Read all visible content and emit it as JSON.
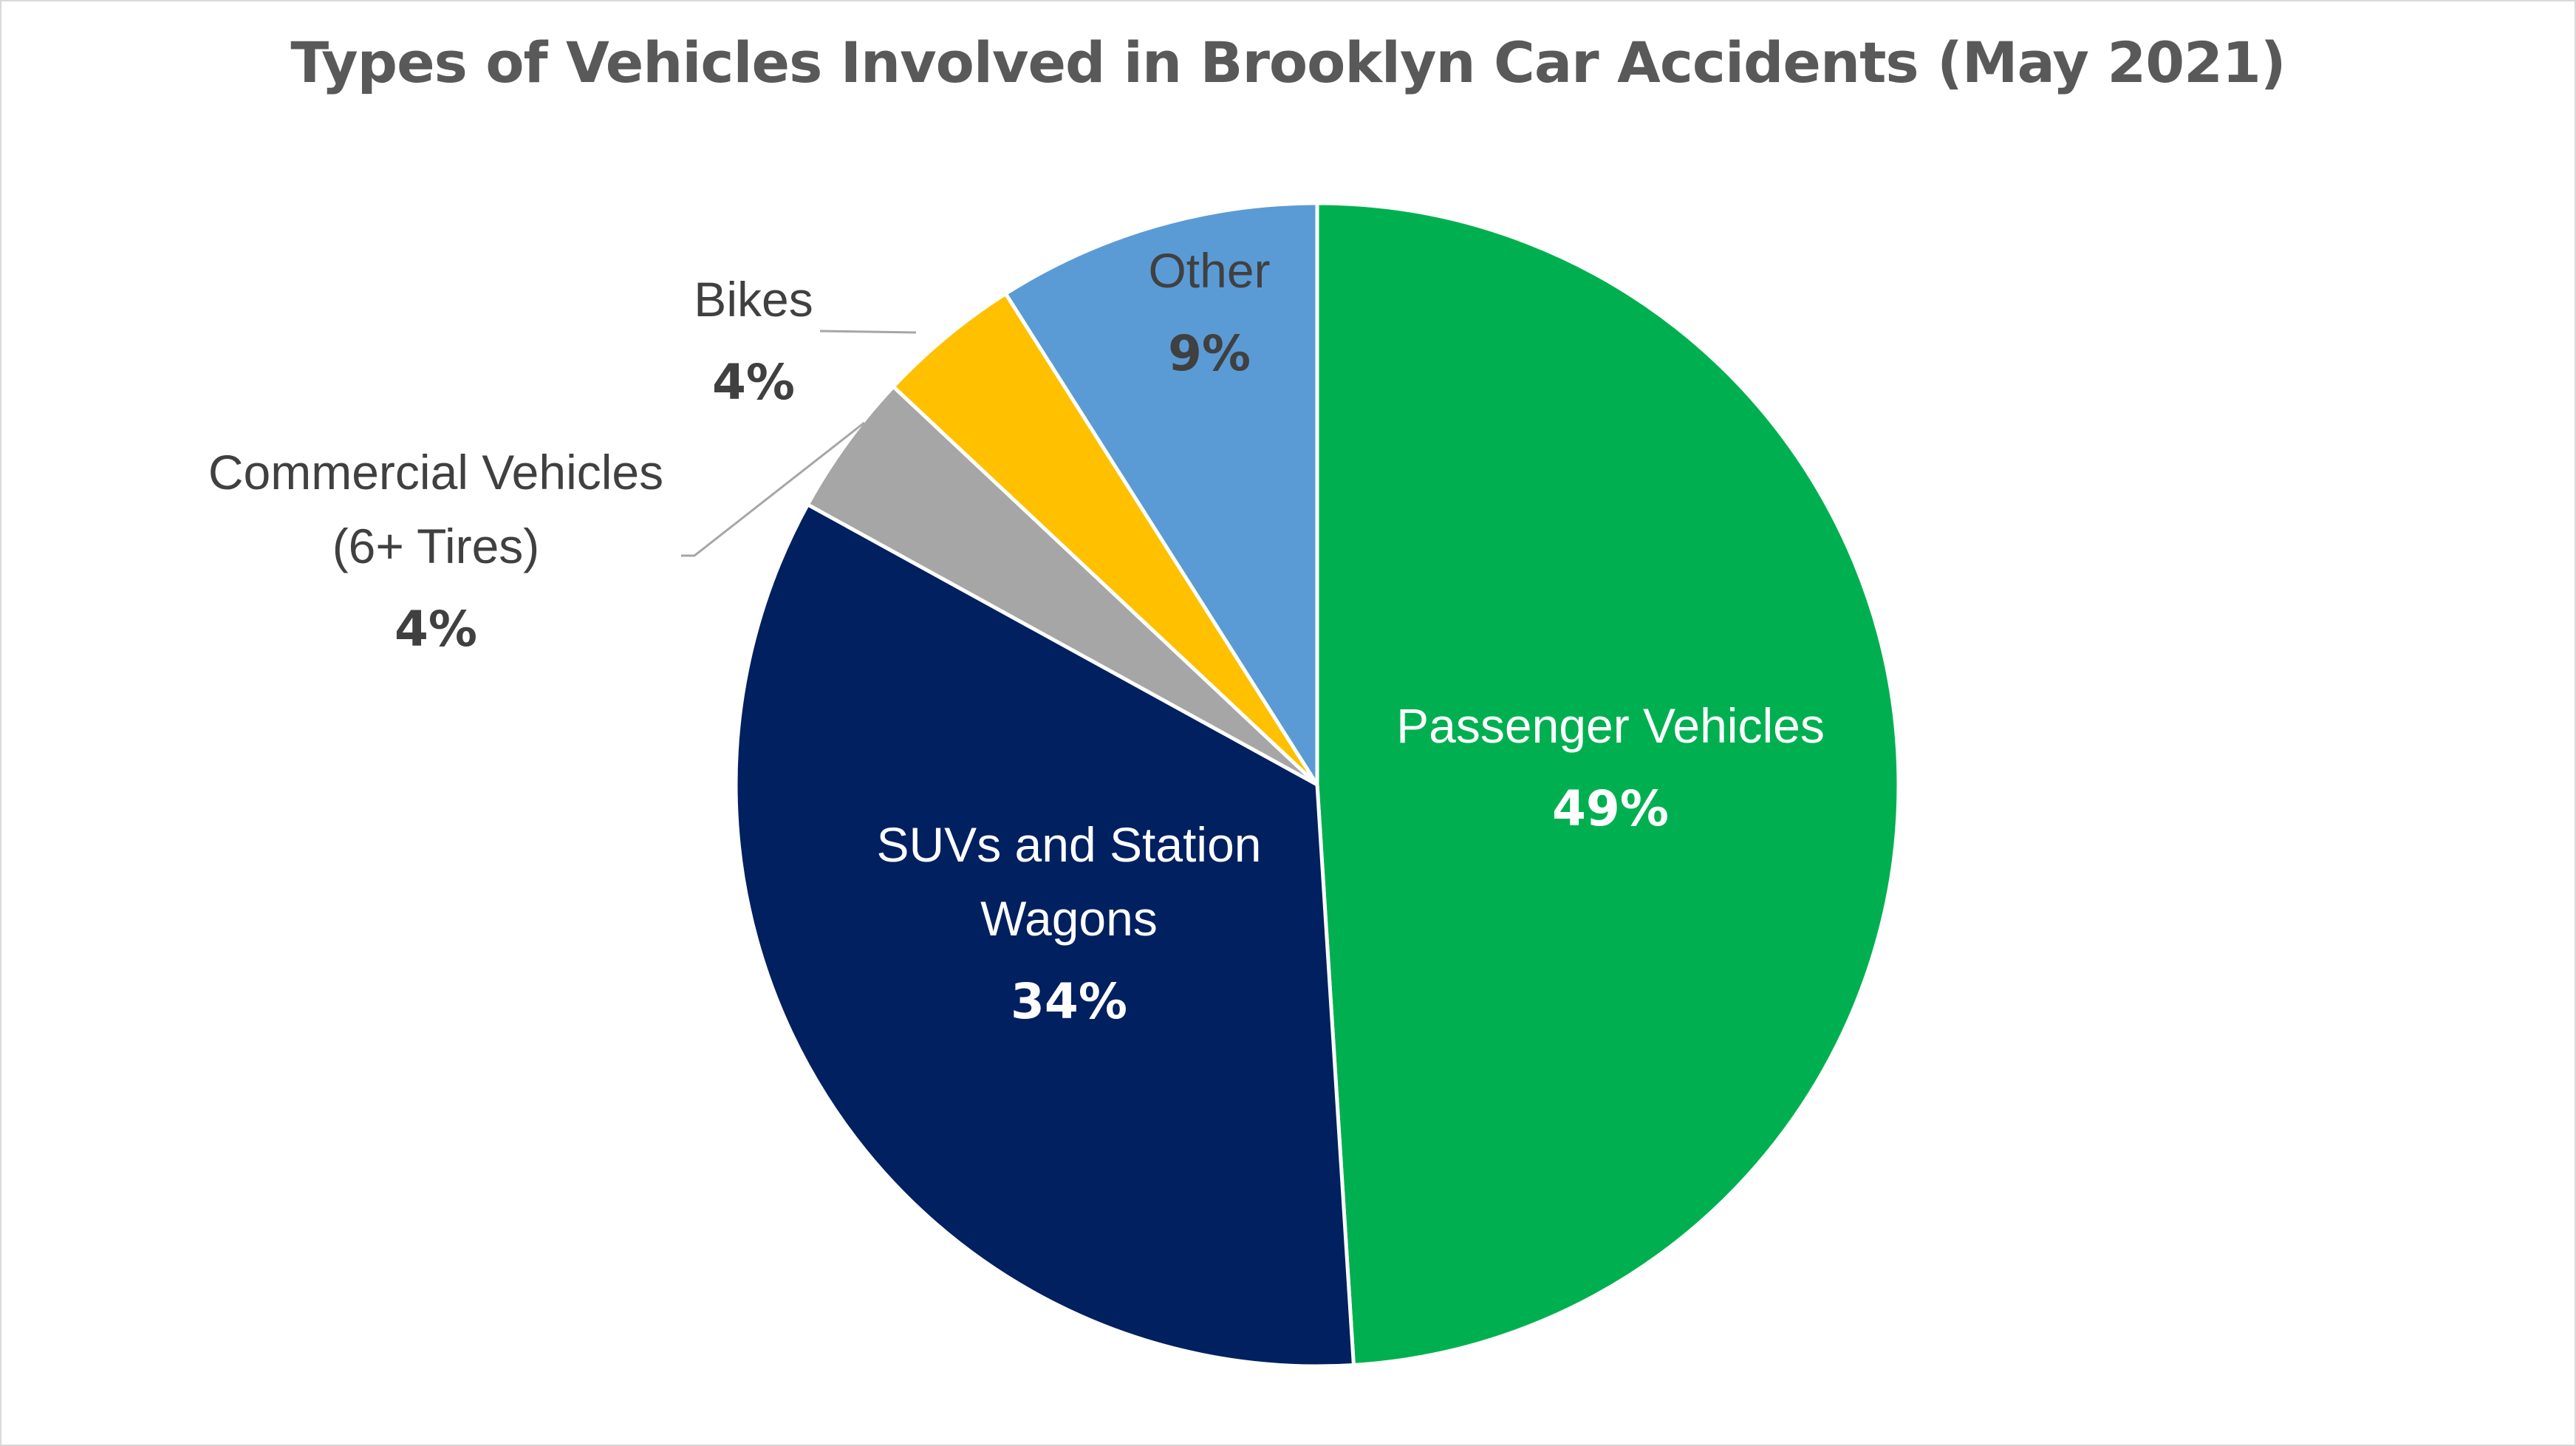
{
  "chart_data": {
    "type": "pie",
    "title": "Types of Vehicles Involved in Brooklyn Car Accidents (May 2021)",
    "start_angle_deg": 0,
    "direction": "clockwise",
    "slices": [
      {
        "label": "Passenger Vehicles",
        "label_lines": [
          "Passenger Vehicles"
        ],
        "value": 49,
        "value_label": "49%",
        "color": "#00b050",
        "text_color": "#ffffff",
        "label_position": "inside"
      },
      {
        "label": "SUVs and Station Wagons",
        "label_lines": [
          "SUVs and Station",
          "Wagons"
        ],
        "value": 34,
        "value_label": "34%",
        "color": "#002060",
        "text_color": "#ffffff",
        "label_position": "inside"
      },
      {
        "label": "Commercial Vehicles (6+ Tires)",
        "label_lines": [
          "Commercial Vehicles",
          "(6+ Tires)"
        ],
        "value": 4,
        "value_label": "4%",
        "color": "#a6a6a6",
        "text_color": "#404040",
        "label_position": "outside-left"
      },
      {
        "label": "Bikes",
        "label_lines": [
          "Bikes"
        ],
        "value": 4,
        "value_label": "4%",
        "color": "#ffc000",
        "text_color": "#404040",
        "label_position": "outside-left"
      },
      {
        "label": "Other",
        "label_lines": [
          "Other"
        ],
        "value": 9,
        "value_label": "9%",
        "color": "#5b9bd5",
        "text_color": "#404040",
        "label_position": "inside"
      }
    ],
    "legend": "none",
    "grid": false
  }
}
